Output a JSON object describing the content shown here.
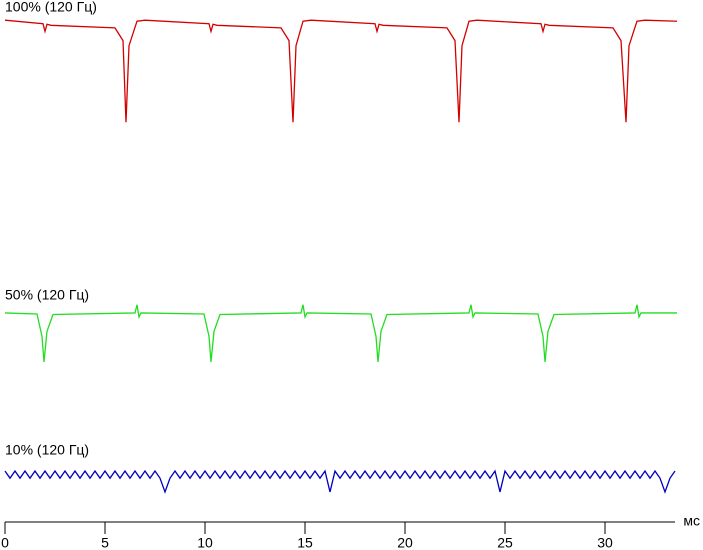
{
  "chart_data": {
    "type": "line",
    "x_label": "мс",
    "xlim": [
      0,
      33.5
    ],
    "xticks": [
      0,
      5,
      10,
      15,
      20,
      25,
      30
    ],
    "ylim": [
      0,
      100
    ],
    "series": [
      {
        "name": "100% (120 Гц)",
        "color": "#d40000",
        "x": [
          0,
          1.9,
          2.0,
          2.1,
          2.3,
          5.5,
          5.9,
          6.05,
          6.2,
          6.6,
          7.0,
          10.2,
          10.3,
          10.4,
          10.6,
          13.8,
          14.2,
          14.4,
          14.55,
          14.9,
          15.3,
          18.5,
          18.6,
          18.7,
          18.9,
          22.1,
          22.5,
          22.7,
          22.85,
          23.2,
          23.6,
          26.8,
          26.9,
          27.0,
          27.2,
          30.4,
          30.8,
          31.05,
          31.2,
          31.6,
          32.0,
          33.6
        ],
        "values": [
          98,
          97.3,
          95.8,
          97.2,
          97,
          96.5,
          94,
          78,
          93,
          97.8,
          98,
          97.3,
          95.8,
          97.2,
          97,
          96.5,
          94,
          78,
          93,
          97.8,
          98,
          97.3,
          95.8,
          97.2,
          97,
          96.5,
          94,
          78,
          93,
          97.8,
          98,
          97.3,
          95.8,
          97.2,
          97,
          96.5,
          94,
          78,
          93,
          97.8,
          98,
          97.8
        ]
      },
      {
        "name": "50% (120 Гц)",
        "color": "#22dd22",
        "x": [
          0,
          1.6,
          1.85,
          1.95,
          2.1,
          2.4,
          6.5,
          6.6,
          6.7,
          6.8,
          9.95,
          10.2,
          10.3,
          10.45,
          10.75,
          14.8,
          14.9,
          15.0,
          15.1,
          18.3,
          18.55,
          18.65,
          18.8,
          19.1,
          23.2,
          23.3,
          23.4,
          23.5,
          26.65,
          26.9,
          27.0,
          27.15,
          27.45,
          31.5,
          31.6,
          31.7,
          31.8,
          33.6
        ],
        "values": [
          40.6,
          40.4,
          36,
          31,
          37,
          40.3,
          40.6,
          42.2,
          39.8,
          40.6,
          40.4,
          36,
          31,
          37,
          40.3,
          40.6,
          42.2,
          39.8,
          40.6,
          40.4,
          36,
          31,
          37,
          40.3,
          40.6,
          42.2,
          39.8,
          40.6,
          40.4,
          36,
          31,
          37,
          40.3,
          40.6,
          42.2,
          39.8,
          40.6,
          40.6
        ]
      },
      {
        "name": "10% (120 Гц)",
        "color": "#0000c0",
        "x": [
          0,
          0.25,
          0.5,
          0.75,
          1,
          1.25,
          1.5,
          1.75,
          2,
          2.25,
          2.5,
          2.75,
          3,
          3.25,
          3.5,
          3.75,
          4,
          4.25,
          4.5,
          4.75,
          5,
          5.25,
          5.5,
          5.75,
          6,
          6.25,
          6.5,
          6.75,
          7,
          7.25,
          7.5,
          7.75,
          8,
          8.25,
          8.5,
          8.75,
          9,
          9.25,
          9.5,
          9.75,
          10,
          10.25,
          10.5,
          10.75,
          11,
          11.25,
          11.5,
          11.75,
          12,
          12.25,
          12.5,
          12.75,
          13,
          13.25,
          13.5,
          13.75,
          14,
          14.25,
          14.5,
          14.75,
          15,
          15.25,
          15.5,
          15.75,
          16,
          16.25,
          16.5,
          16.75,
          17,
          17.25,
          17.5,
          17.75,
          18,
          18.25,
          18.5,
          18.75,
          19,
          19.25,
          19.5,
          19.75,
          20,
          20.25,
          20.5,
          20.75,
          21,
          21.25,
          21.5,
          21.75,
          22,
          22.25,
          22.5,
          22.75,
          23,
          23.25,
          23.5,
          23.75,
          24,
          24.25,
          24.5,
          24.75,
          25,
          25.25,
          25.5,
          25.75,
          26,
          26.25,
          26.5,
          26.75,
          27,
          27.25,
          27.5,
          27.75,
          28,
          28.25,
          28.5,
          28.75,
          29,
          29.25,
          29.5,
          29.75,
          30,
          30.25,
          30.5,
          30.75,
          31,
          31.25,
          31.5,
          31.75,
          32,
          32.25,
          32.5,
          32.75,
          33,
          33.25,
          33.5
        ],
        "values": [
          9.6,
          8.2,
          9.6,
          8.2,
          9.6,
          8.2,
          9.6,
          8.2,
          9.6,
          8.2,
          9.6,
          8.2,
          9.6,
          8.2,
          9.6,
          8.2,
          9.6,
          8.2,
          9.6,
          8.2,
          9.6,
          8.2,
          9.6,
          8.2,
          9.6,
          8.2,
          9.6,
          8.2,
          9.6,
          8.2,
          9.6,
          8.2,
          5.5,
          8.2,
          9.6,
          8.2,
          9.6,
          8.2,
          9.6,
          8.2,
          9.6,
          8.2,
          9.6,
          8.2,
          9.6,
          8.2,
          9.6,
          8.2,
          9.6,
          8.2,
          9.6,
          8.2,
          9.6,
          8.2,
          9.6,
          8.2,
          9.6,
          8.2,
          9.6,
          8.2,
          9.6,
          8.2,
          9.6,
          8.2,
          9.6,
          5.5,
          9.6,
          8.2,
          9.6,
          8.2,
          9.6,
          8.2,
          9.6,
          8.2,
          9.6,
          8.2,
          9.6,
          8.2,
          9.6,
          8.2,
          9.6,
          8.2,
          9.6,
          8.2,
          9.6,
          8.2,
          9.6,
          8.2,
          9.6,
          8.2,
          9.6,
          8.2,
          9.6,
          8.2,
          9.6,
          8.2,
          9.6,
          8.2,
          9.6,
          5.5,
          9.6,
          8.2,
          9.6,
          8.2,
          9.6,
          8.2,
          9.6,
          8.2,
          9.6,
          8.2,
          9.6,
          8.2,
          9.6,
          8.2,
          9.6,
          8.2,
          9.6,
          8.2,
          9.6,
          8.2,
          9.6,
          8.2,
          9.6,
          8.2,
          9.6,
          8.2,
          9.6,
          8.2,
          9.6,
          8.2,
          9.6,
          8.2,
          5.5,
          8.2,
          9.6
        ]
      }
    ]
  }
}
